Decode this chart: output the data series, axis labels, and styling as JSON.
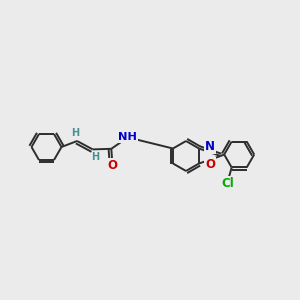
{
  "background_color": "#ebebeb",
  "bond_color": "#2d2d2d",
  "atom_colors": {
    "N": "#0000cc",
    "O": "#cc0000",
    "Cl": "#00aa00",
    "H": "#4a9090",
    "C": "#2d2d2d"
  },
  "figsize": [
    3.0,
    3.0
  ],
  "dpi": 100
}
